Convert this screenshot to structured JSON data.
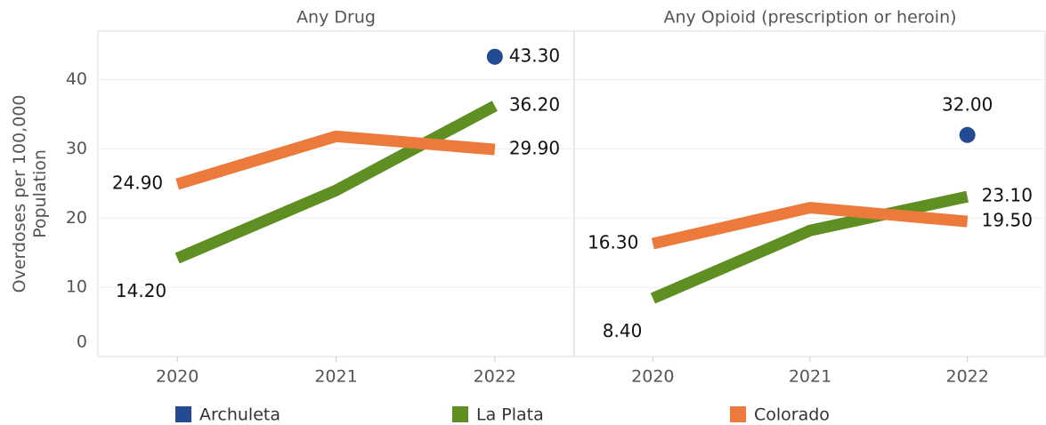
{
  "chart_data": [
    {
      "type": "line",
      "title": "Any Drug",
      "ylabel": "Overdoses per 100,000 Population",
      "categories": [
        "2020",
        "2021",
        "2022"
      ],
      "ylim": [
        0,
        47
      ],
      "yticks": [
        0,
        10,
        20,
        30,
        40
      ],
      "grid": true,
      "series": [
        {
          "name": "Archuleta",
          "color": "#234a93",
          "values": [
            null,
            null,
            43.3
          ],
          "value_labels": [
            null,
            null,
            "43.30"
          ]
        },
        {
          "name": "La Plata",
          "color": "#5f8f23",
          "values": [
            14.2,
            24.0,
            36.2
          ],
          "value_labels": [
            "14.20",
            null,
            "36.20"
          ]
        },
        {
          "name": "Colorado",
          "color": "#ec7a3c",
          "values": [
            24.9,
            31.8,
            29.9
          ],
          "value_labels": [
            "24.90",
            null,
            "29.90"
          ]
        }
      ]
    },
    {
      "type": "line",
      "title": "Any Opioid (prescription or heroin)",
      "categories": [
        "2020",
        "2021",
        "2022"
      ],
      "ylim": [
        0,
        47
      ],
      "grid": true,
      "series": [
        {
          "name": "Archuleta",
          "color": "#234a93",
          "values": [
            null,
            null,
            32.0
          ],
          "value_labels": [
            null,
            null,
            "32.00"
          ]
        },
        {
          "name": "La Plata",
          "color": "#5f8f23",
          "values": [
            8.4,
            18.2,
            23.1
          ],
          "value_labels": [
            "8.40",
            null,
            "23.10"
          ]
        },
        {
          "name": "Colorado",
          "color": "#ec7a3c",
          "values": [
            16.3,
            21.5,
            19.5
          ],
          "value_labels": [
            "16.30",
            null,
            "19.50"
          ]
        }
      ]
    }
  ]
}
